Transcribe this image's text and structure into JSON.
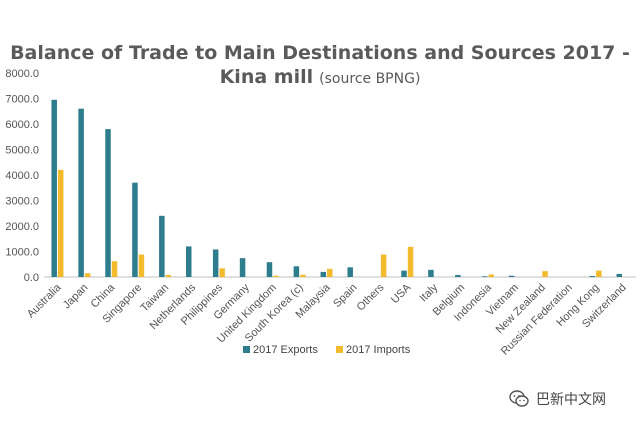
{
  "chart_data": {
    "type": "bar",
    "title": "Balance of Trade to Main Destinations and Sources 2017  -",
    "subtitle_main": "Kina mill",
    "subtitle_note": "(source BPNG)",
    "xlabel": "",
    "ylabel": "",
    "ylim": [
      0,
      8000
    ],
    "yticks": [
      "0.0",
      "1000.0",
      "2000.0",
      "3000.0",
      "4000.0",
      "5000.0",
      "6000.0",
      "7000.0",
      "8000.0"
    ],
    "grid": false,
    "legend_position": "bottom",
    "categories": [
      "Australia",
      "Japan",
      "China",
      "Singapore",
      "Taiwan",
      "Netherlands",
      "Philippines",
      "Germany",
      "United Kingdom",
      "South Korea (c)",
      "Malaysia",
      "Spain",
      "Others",
      "USA",
      "Italy",
      "Belgium",
      "Indonesia",
      "Vietnam",
      "New Zealand",
      "Russian Federation",
      "Hong Kong",
      "Switzerland"
    ],
    "series": [
      {
        "name": "2017 Exports",
        "color": "#2e7d8c",
        "values": [
          6950,
          6600,
          5800,
          3700,
          2400,
          1200,
          1080,
          740,
          580,
          420,
          200,
          380,
          0,
          250,
          280,
          80,
          30,
          50,
          0,
          0,
          40,
          120
        ]
      },
      {
        "name": "2017 Imports",
        "color": "#f2bb2e",
        "values": [
          4200,
          150,
          620,
          880,
          80,
          0,
          340,
          0,
          50,
          90,
          320,
          0,
          880,
          1180,
          0,
          0,
          100,
          0,
          230,
          0,
          250,
          0
        ]
      }
    ]
  },
  "watermark": {
    "icon": "wechat-logo-icon",
    "text": "巴新中文网"
  }
}
